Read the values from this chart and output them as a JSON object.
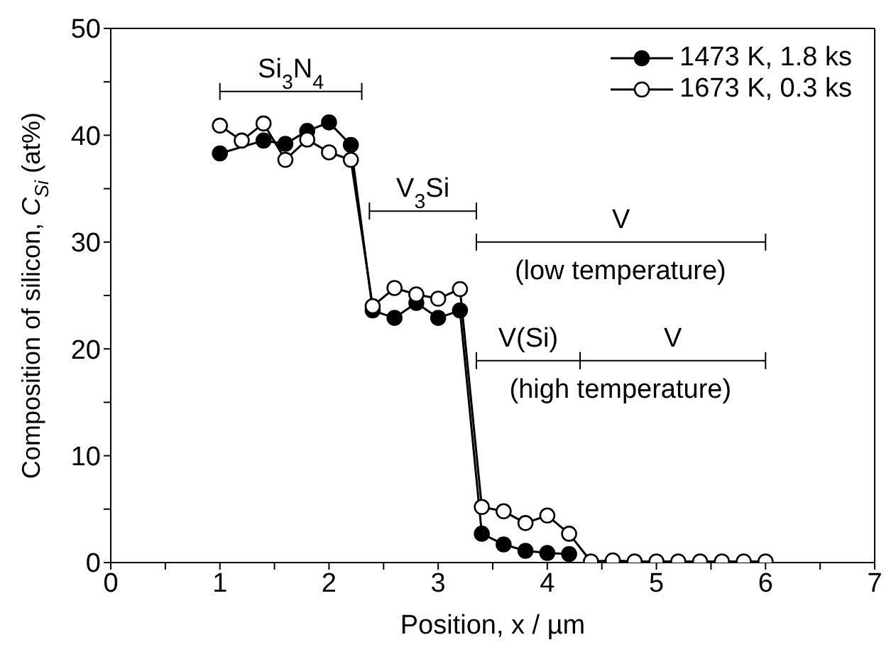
{
  "chart_data": {
    "type": "line",
    "xlabel": "Position,  x / µm",
    "ylabel": "Composition of silicon, C$_{Si}$ (at%)",
    "xlim": [
      0,
      7
    ],
    "ylim": [
      0,
      50
    ],
    "xticks": [
      0,
      {
        "value": 0.5,
        "label": null
      },
      1,
      {
        "value": 1.5,
        "label": null
      },
      2,
      {
        "value": 2.5,
        "label": null
      },
      3,
      {
        "value": 3.5,
        "label": null
      },
      4,
      {
        "value": 4.5,
        "label": null
      },
      5,
      {
        "value": 5.5,
        "label": null
      },
      6,
      {
        "value": 6.5,
        "label": null
      },
      7
    ],
    "yticks": [
      0,
      {
        "value": 5,
        "label": null
      },
      10,
      {
        "value": 15,
        "label": null
      },
      20,
      {
        "value": 25,
        "label": null
      },
      30,
      {
        "value": 35,
        "label": null
      },
      40,
      {
        "value": 45,
        "label": null
      },
      50
    ],
    "legend": "top right",
    "marker": "circle",
    "line_style": "solid",
    "series": [
      {
        "name": "1473 K, 1.8 ks",
        "color": "#000000",
        "x": [
          1.0,
          1.4,
          1.6,
          1.8,
          2.0,
          2.2,
          2.4,
          2.6,
          2.8,
          3.0,
          3.2,
          3.4,
          3.6,
          3.8,
          4.0,
          4.2
        ],
        "values": [
          38.3,
          39.5,
          39.2,
          40.4,
          41.2,
          39.1,
          23.6,
          22.9,
          24.3,
          22.9,
          23.6,
          2.7,
          1.7,
          1.1,
          0.9,
          0.8
        ]
      },
      {
        "name": "1673 K, 0.3 ks",
        "color": "#000000",
        "x": [
          1.0,
          1.2,
          1.4,
          1.6,
          1.8,
          2.0,
          2.2,
          2.4,
          2.6,
          2.8,
          3.0,
          3.2,
          3.4,
          3.6,
          3.8,
          4.0,
          4.2,
          4.4,
          4.6,
          4.8,
          5.0,
          5.2,
          5.4,
          5.6,
          5.8,
          6.0
        ],
        "values": [
          40.9,
          39.5,
          41.1,
          37.7,
          39.6,
          38.4,
          37.7,
          24.0,
          25.7,
          25.1,
          24.7,
          25.6,
          5.2,
          4.8,
          3.7,
          4.4,
          2.7,
          0.1,
          0.2,
          0.1,
          0.1,
          0.1,
          0.1,
          0.1,
          0.1,
          0.1
        ]
      }
    ],
    "annotations": [
      "Si$_{3}$N$_{4}$",
      "V$_{3}$Si",
      "V",
      "(low temperature)",
      "V(Si)",
      "V",
      "(high temperature)"
    ]
  }
}
